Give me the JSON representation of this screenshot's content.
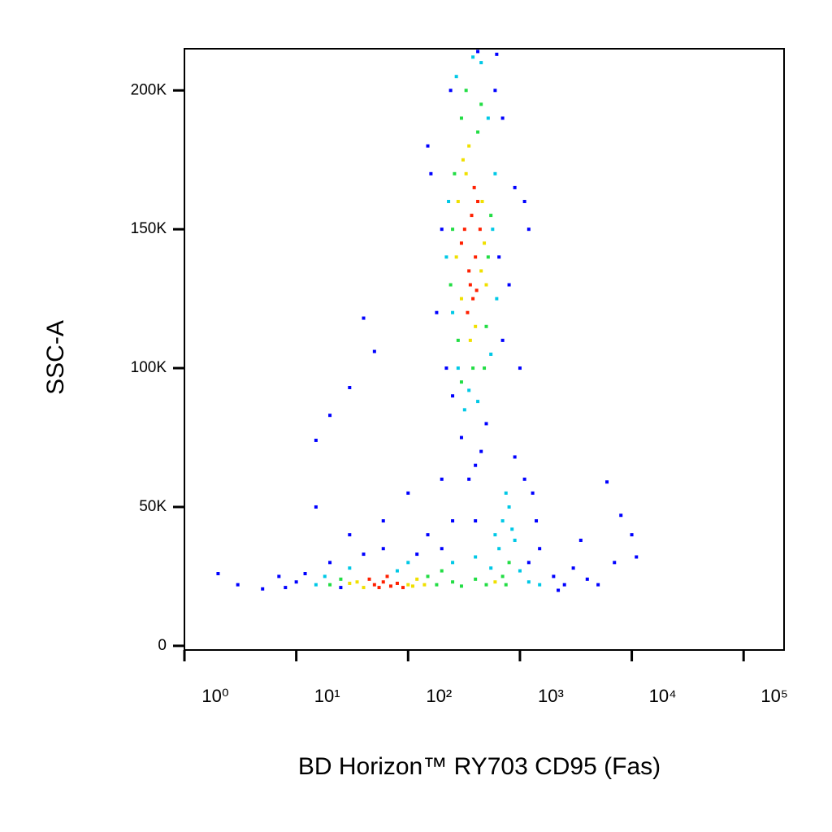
{
  "chart_data": {
    "type": "scatter",
    "x_label": "BD Horizon™ RY703 CD95 (Fas)",
    "y_label": "SSC-A",
    "xscale": "log",
    "xlim": [
      1,
      230000
    ],
    "ylim": [
      -1500,
      215000
    ],
    "xticks": [
      {
        "value": 1,
        "label": "10⁰"
      },
      {
        "value": 10,
        "label": "10¹"
      },
      {
        "value": 100,
        "label": "10²"
      },
      {
        "value": 1000,
        "label": "10³"
      },
      {
        "value": 10000,
        "label": "10⁴"
      },
      {
        "value": 100000,
        "label": "10⁵"
      }
    ],
    "yticks": [
      0,
      {
        "value": 50000,
        "label": "50K"
      },
      {
        "value": 100000,
        "label": "100K"
      },
      {
        "value": 150000,
        "label": "150K"
      },
      {
        "value": 200000,
        "label": "200K"
      }
    ],
    "series": [
      {
        "color": "#0000ff",
        "x": [
          200,
          650,
          240,
          600,
          180,
          700,
          300,
          500,
          400,
          250,
          800,
          160,
          900,
          1000,
          1100,
          220,
          700,
          450,
          350,
          1200,
          150,
          620,
          420,
          8,
          10,
          12,
          5,
          3,
          2,
          20,
          40,
          60,
          150,
          250,
          200,
          1200,
          1500,
          2000,
          2500,
          3000,
          4000,
          5000,
          7000,
          8000,
          6000,
          10000,
          1300,
          1400,
          1100,
          30,
          15,
          60,
          100,
          200,
          40,
          50,
          30,
          20,
          15,
          900,
          3500,
          2200,
          11000,
          400,
          120,
          7,
          25
        ],
        "y": [
          150000,
          140000,
          200000,
          200000,
          120000,
          110000,
          75000,
          80000,
          65000,
          90000,
          130000,
          170000,
          165000,
          100000,
          160000,
          100000,
          190000,
          70000,
          60000,
          150000,
          180000,
          213000,
          214000,
          21000,
          23000,
          26000,
          20500,
          22000,
          26000,
          30000,
          33000,
          35000,
          40000,
          45000,
          35000,
          30000,
          35000,
          25000,
          22000,
          28000,
          24000,
          22000,
          30000,
          47000,
          59000,
          40000,
          55000,
          45000,
          60000,
          40000,
          50000,
          45000,
          55000,
          60000,
          118000,
          106000,
          93000,
          83000,
          74000,
          68000,
          38000,
          20000,
          32000,
          45000,
          33000,
          25000,
          21000
        ]
      },
      {
        "color": "#00c8e6",
        "x": [
          230,
          570,
          270,
          450,
          350,
          550,
          250,
          600,
          220,
          320,
          420,
          520,
          380,
          280,
          620,
          15,
          18,
          250,
          400,
          600,
          700,
          800,
          650,
          900,
          550,
          750,
          1000,
          1200,
          30,
          80,
          100,
          1500,
          850
        ],
        "y": [
          160000,
          150000,
          205000,
          210000,
          92000,
          105000,
          120000,
          170000,
          140000,
          85000,
          88000,
          190000,
          212000,
          100000,
          125000,
          22000,
          25000,
          30000,
          32000,
          40000,
          45000,
          50000,
          35000,
          38000,
          28000,
          55000,
          27000,
          23000,
          28000,
          27000,
          30000,
          22000,
          42000
        ]
      },
      {
        "color": "#22dd44",
        "x": [
          250,
          520,
          300,
          420,
          280,
          500,
          380,
          260,
          550,
          330,
          450,
          300,
          480,
          240,
          25,
          150,
          180,
          200,
          20,
          250,
          300,
          700,
          800,
          750,
          400,
          500
        ],
        "y": [
          150000,
          140000,
          190000,
          185000,
          110000,
          115000,
          100000,
          170000,
          155000,
          200000,
          195000,
          95000,
          100000,
          130000,
          24000,
          25000,
          22000,
          27000,
          22000,
          23000,
          21500,
          25000,
          30000,
          22000,
          24000,
          22000
        ]
      },
      {
        "color": "#f0e000",
        "x": [
          280,
          450,
          330,
          300,
          480,
          400,
          310,
          360,
          460,
          270,
          500,
          350,
          35,
          100,
          120,
          40,
          110,
          30,
          140,
          600
        ],
        "y": [
          160000,
          135000,
          170000,
          125000,
          145000,
          115000,
          175000,
          110000,
          160000,
          140000,
          130000,
          180000,
          23000,
          22000,
          24000,
          21000,
          21500,
          22500,
          22000,
          23000
        ]
      },
      {
        "color": "#ff2000",
        "x": [
          350,
          400,
          320,
          380,
          420,
          300,
          360,
          440,
          390,
          340,
          370,
          410,
          50,
          60,
          70,
          45,
          80,
          90,
          55,
          65
        ],
        "y": [
          135000,
          140000,
          150000,
          125000,
          160000,
          145000,
          130000,
          150000,
          165000,
          120000,
          155000,
          128000,
          22000,
          23000,
          21500,
          24000,
          22500,
          21000,
          21000,
          25000
        ]
      }
    ]
  }
}
